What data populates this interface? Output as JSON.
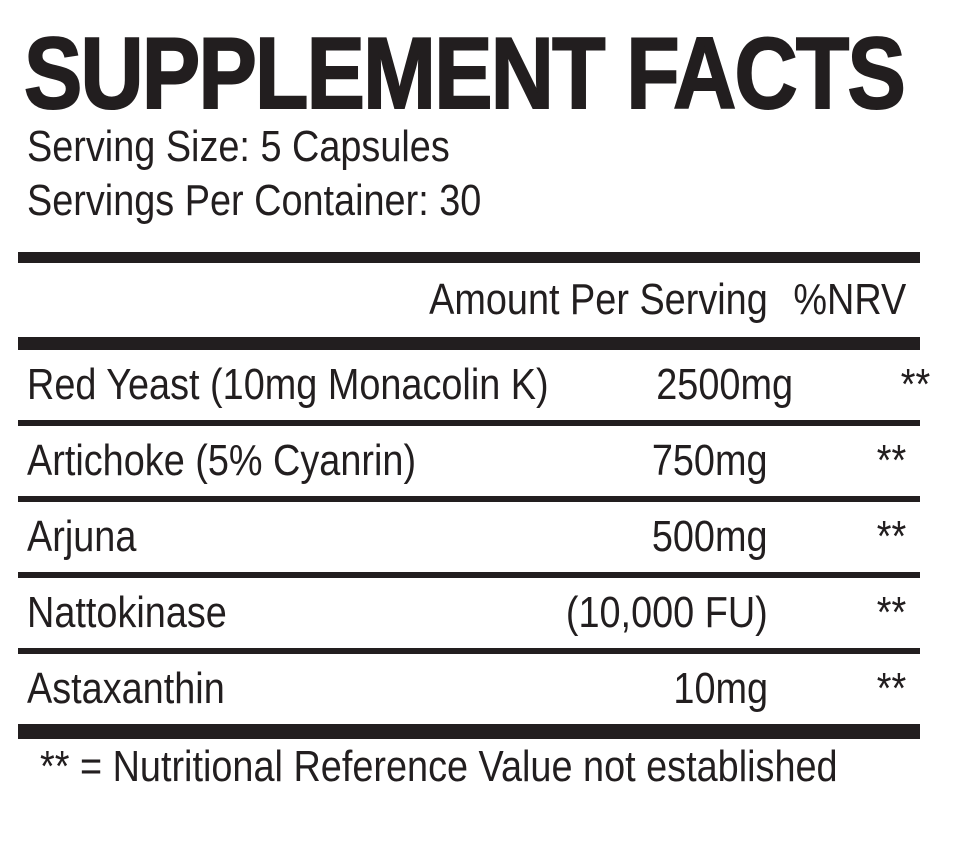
{
  "label": {
    "title": "SUPPLEMENT FACTS",
    "serving_size": "Serving Size: 5 Capsules",
    "servings_per_container": "Servings Per Container: 30",
    "table": {
      "amount_header": "Amount Per Serving",
      "nrv_header": "%NRV",
      "rows": [
        {
          "name": "Red Yeast (10mg Monacolin K)",
          "amount": "2500mg",
          "nrv": "**"
        },
        {
          "name": "Artichoke (5% Cyanrin)",
          "amount": "750mg",
          "nrv": "**"
        },
        {
          "name": "Arjuna",
          "amount": "500mg",
          "nrv": "**"
        },
        {
          "name": "Nattokinase",
          "amount": "(10,000 FU)",
          "nrv": "**"
        },
        {
          "name": "Astaxanthin",
          "amount": "10mg",
          "nrv": "**"
        }
      ]
    },
    "footnote": "** = Nutritional Reference Value not established",
    "colors": {
      "ink": "#221e1f",
      "background": "#ffffff"
    }
  }
}
